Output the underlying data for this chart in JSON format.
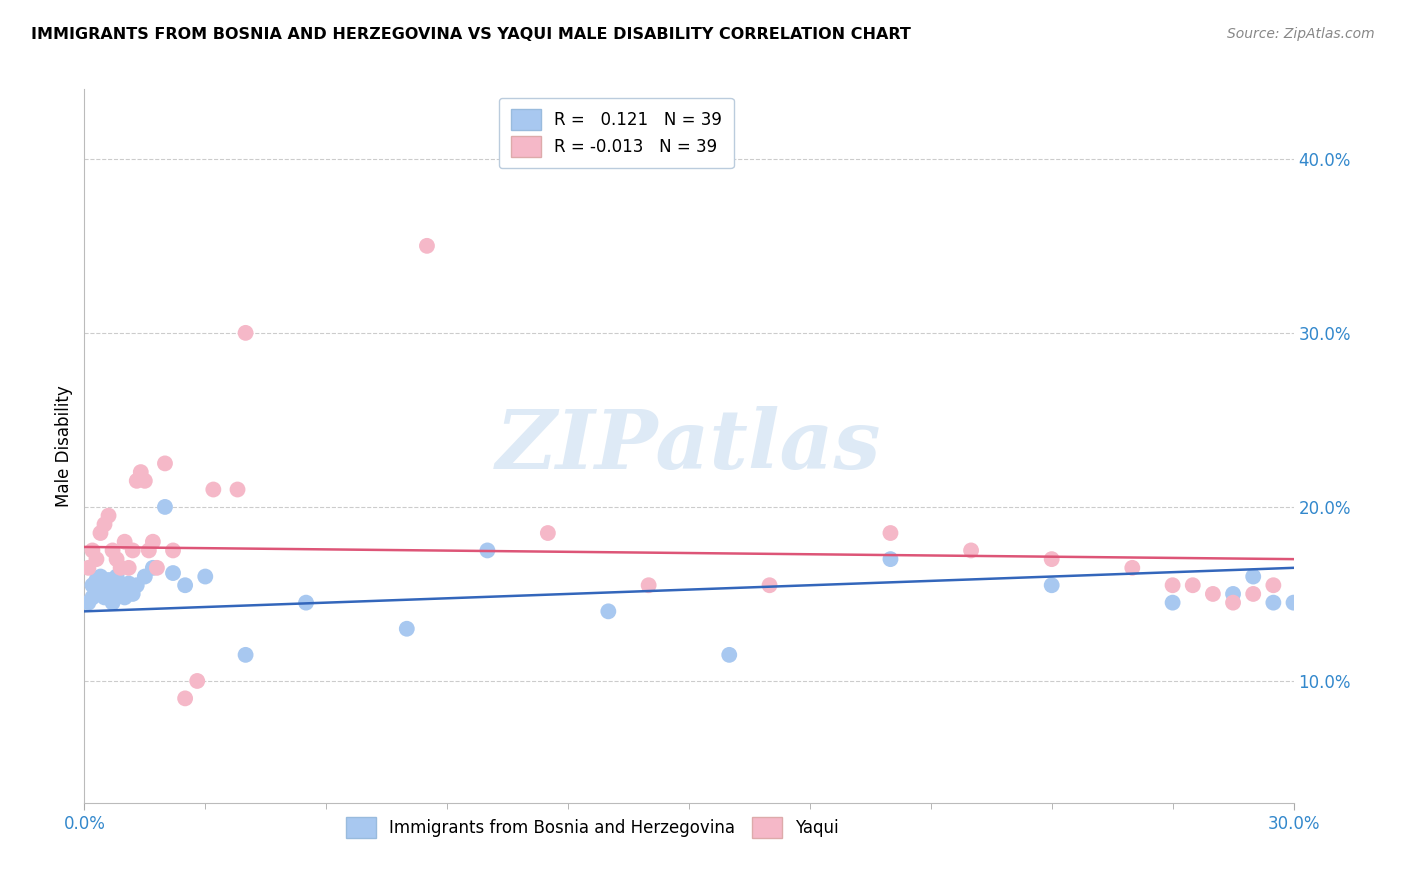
{
  "title": "IMMIGRANTS FROM BOSNIA AND HERZEGOVINA VS YAQUI MALE DISABILITY CORRELATION CHART",
  "source": "Source: ZipAtlas.com",
  "ylabel": "Male Disability",
  "ytick_values": [
    0.1,
    0.2,
    0.3,
    0.4
  ],
  "xlim": [
    0.0,
    0.3
  ],
  "ylim": [
    0.03,
    0.44
  ],
  "legend_r_blue": "0.121",
  "legend_r_pink": "-0.013",
  "legend_n": "39",
  "blue_color": "#A8C8F0",
  "pink_color": "#F5B8C8",
  "blue_line_color": "#3366BB",
  "pink_line_color": "#DD5577",
  "watermark": "ZIPatlas",
  "blue_scatter_x": [
    0.001,
    0.002,
    0.002,
    0.003,
    0.003,
    0.004,
    0.004,
    0.005,
    0.005,
    0.006,
    0.006,
    0.007,
    0.007,
    0.008,
    0.008,
    0.009,
    0.01,
    0.011,
    0.012,
    0.013,
    0.015,
    0.017,
    0.02,
    0.022,
    0.025,
    0.03,
    0.04,
    0.055,
    0.08,
    0.1,
    0.13,
    0.16,
    0.2,
    0.24,
    0.27,
    0.285,
    0.29,
    0.295,
    0.3
  ],
  "blue_scatter_y": [
    0.145,
    0.148,
    0.155,
    0.152,
    0.158,
    0.15,
    0.16,
    0.148,
    0.155,
    0.152,
    0.158,
    0.145,
    0.15,
    0.155,
    0.16,
    0.152,
    0.148,
    0.156,
    0.15,
    0.155,
    0.16,
    0.165,
    0.2,
    0.162,
    0.155,
    0.16,
    0.115,
    0.145,
    0.13,
    0.175,
    0.14,
    0.115,
    0.17,
    0.155,
    0.145,
    0.15,
    0.16,
    0.145,
    0.145
  ],
  "pink_scatter_x": [
    0.001,
    0.002,
    0.003,
    0.004,
    0.005,
    0.006,
    0.007,
    0.008,
    0.009,
    0.01,
    0.011,
    0.012,
    0.013,
    0.014,
    0.015,
    0.016,
    0.017,
    0.018,
    0.02,
    0.022,
    0.025,
    0.028,
    0.032,
    0.038,
    0.04,
    0.085,
    0.115,
    0.14,
    0.17,
    0.2,
    0.22,
    0.24,
    0.26,
    0.27,
    0.275,
    0.28,
    0.285,
    0.29,
    0.295
  ],
  "pink_scatter_y": [
    0.165,
    0.175,
    0.17,
    0.185,
    0.19,
    0.195,
    0.175,
    0.17,
    0.165,
    0.18,
    0.165,
    0.175,
    0.215,
    0.22,
    0.215,
    0.175,
    0.18,
    0.165,
    0.225,
    0.175,
    0.09,
    0.1,
    0.21,
    0.21,
    0.3,
    0.35,
    0.185,
    0.155,
    0.155,
    0.185,
    0.175,
    0.17,
    0.165,
    0.155,
    0.155,
    0.15,
    0.145,
    0.15,
    0.155
  ],
  "blue_trend_x": [
    0.0,
    0.3
  ],
  "blue_trend_y": [
    0.14,
    0.165
  ],
  "pink_trend_x": [
    0.0,
    0.3
  ],
  "pink_trend_y": [
    0.177,
    0.17
  ]
}
